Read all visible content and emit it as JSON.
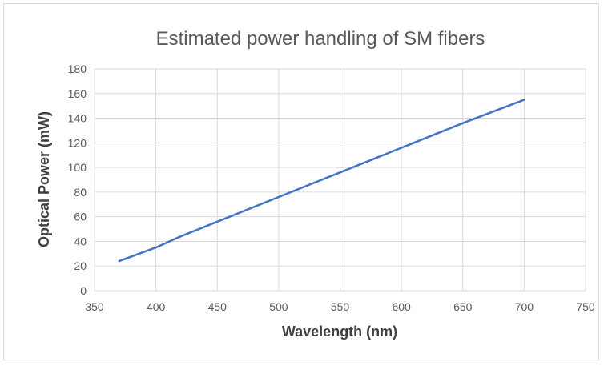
{
  "chart_data": {
    "type": "line",
    "title": "Estimated power handling of SM fibers",
    "xlabel": "Wavelength (nm)",
    "ylabel": "Optical Power (mW)",
    "xlim": [
      350,
      750
    ],
    "ylim": [
      0,
      180
    ],
    "xticks": [
      350,
      400,
      450,
      500,
      550,
      600,
      650,
      700,
      750
    ],
    "yticks": [
      0,
      20,
      40,
      60,
      80,
      100,
      120,
      140,
      160,
      180
    ],
    "grid": true,
    "legend": "none",
    "series": [
      {
        "color": "#4472c4",
        "x": [
          370,
          400,
          420,
          450,
          500,
          520,
          550,
          580,
          590,
          600,
          650,
          700
        ],
        "y": [
          24,
          35,
          44,
          56,
          76,
          84,
          96,
          108,
          112,
          116,
          136,
          155
        ]
      }
    ]
  }
}
